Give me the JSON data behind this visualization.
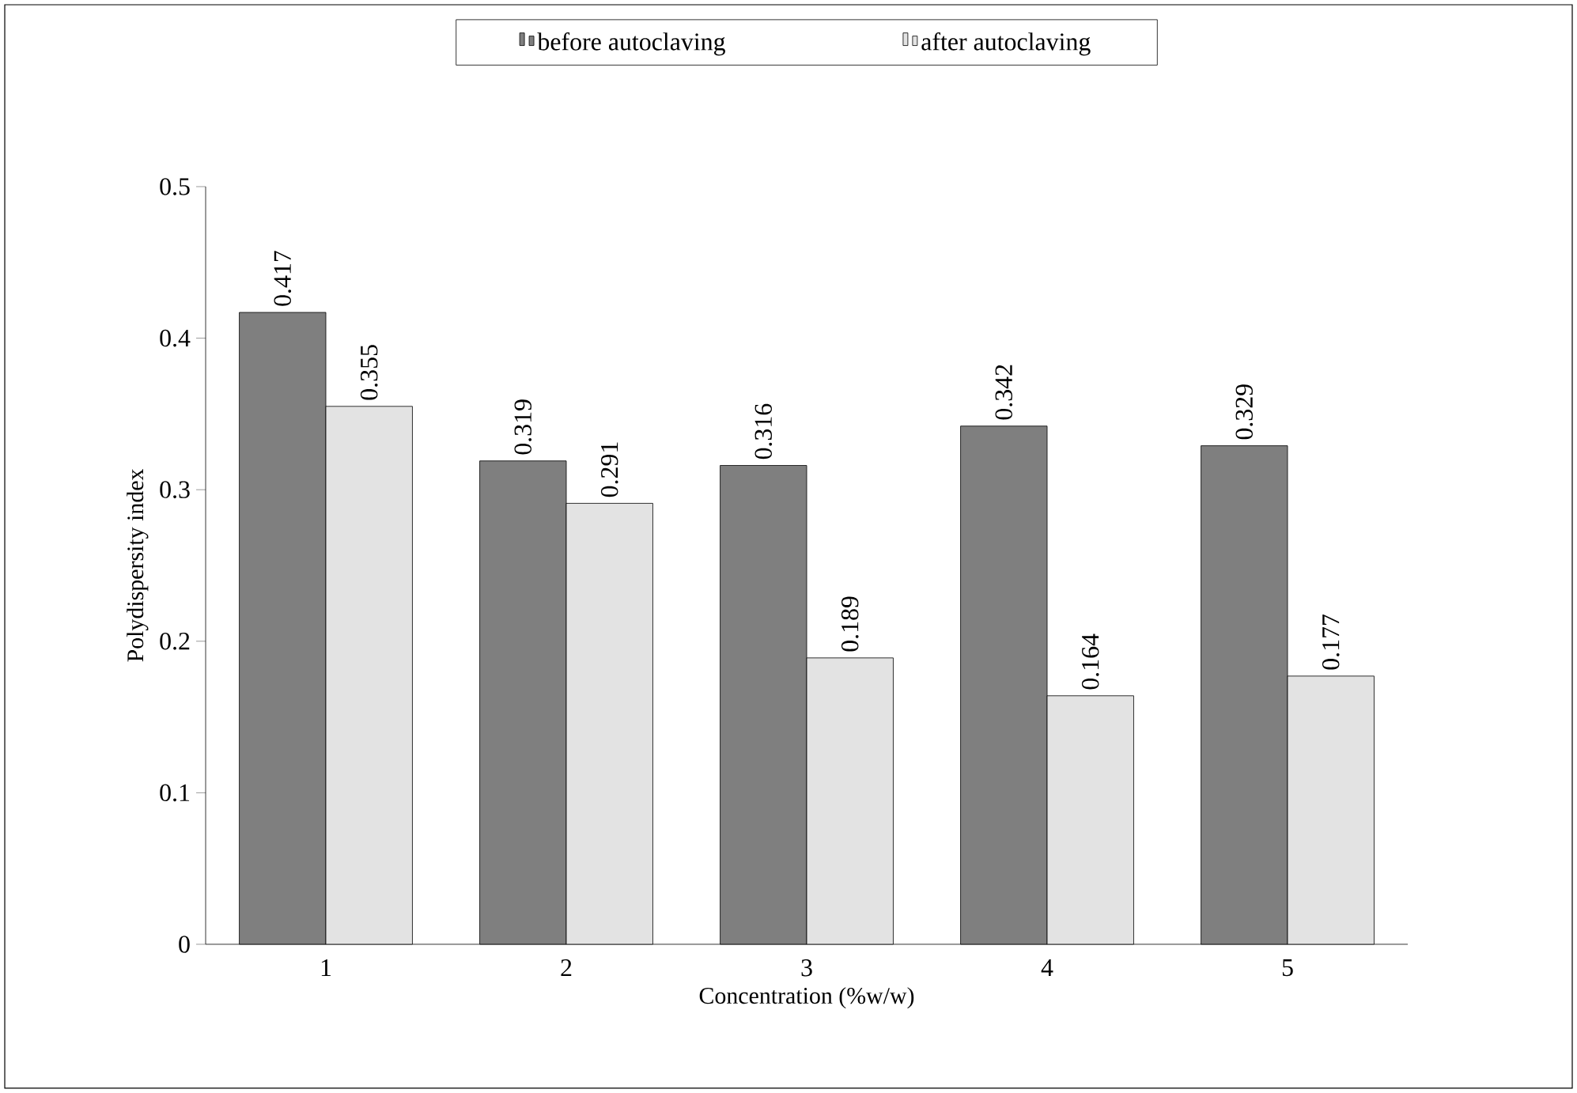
{
  "chart_data": {
    "type": "bar",
    "categories": [
      "1",
      "2",
      "3",
      "4",
      "5"
    ],
    "series": [
      {
        "name": "before autoclaving",
        "color": "#7f7f7f",
        "values": [
          0.417,
          0.319,
          0.316,
          0.342,
          0.329
        ]
      },
      {
        "name": "after autoclaving",
        "color": "#e3e3e3",
        "values": [
          0.355,
          0.291,
          0.189,
          0.164,
          0.177
        ]
      }
    ],
    "xlabel": "Concentration (%w/w)",
    "ylabel": "Polydispersity index",
    "ylim": [
      0,
      0.5
    ],
    "yticks": [
      0,
      0.1,
      0.2,
      0.3,
      0.4,
      0.5
    ],
    "data_labels": true,
    "legend": "top",
    "grid": false
  }
}
